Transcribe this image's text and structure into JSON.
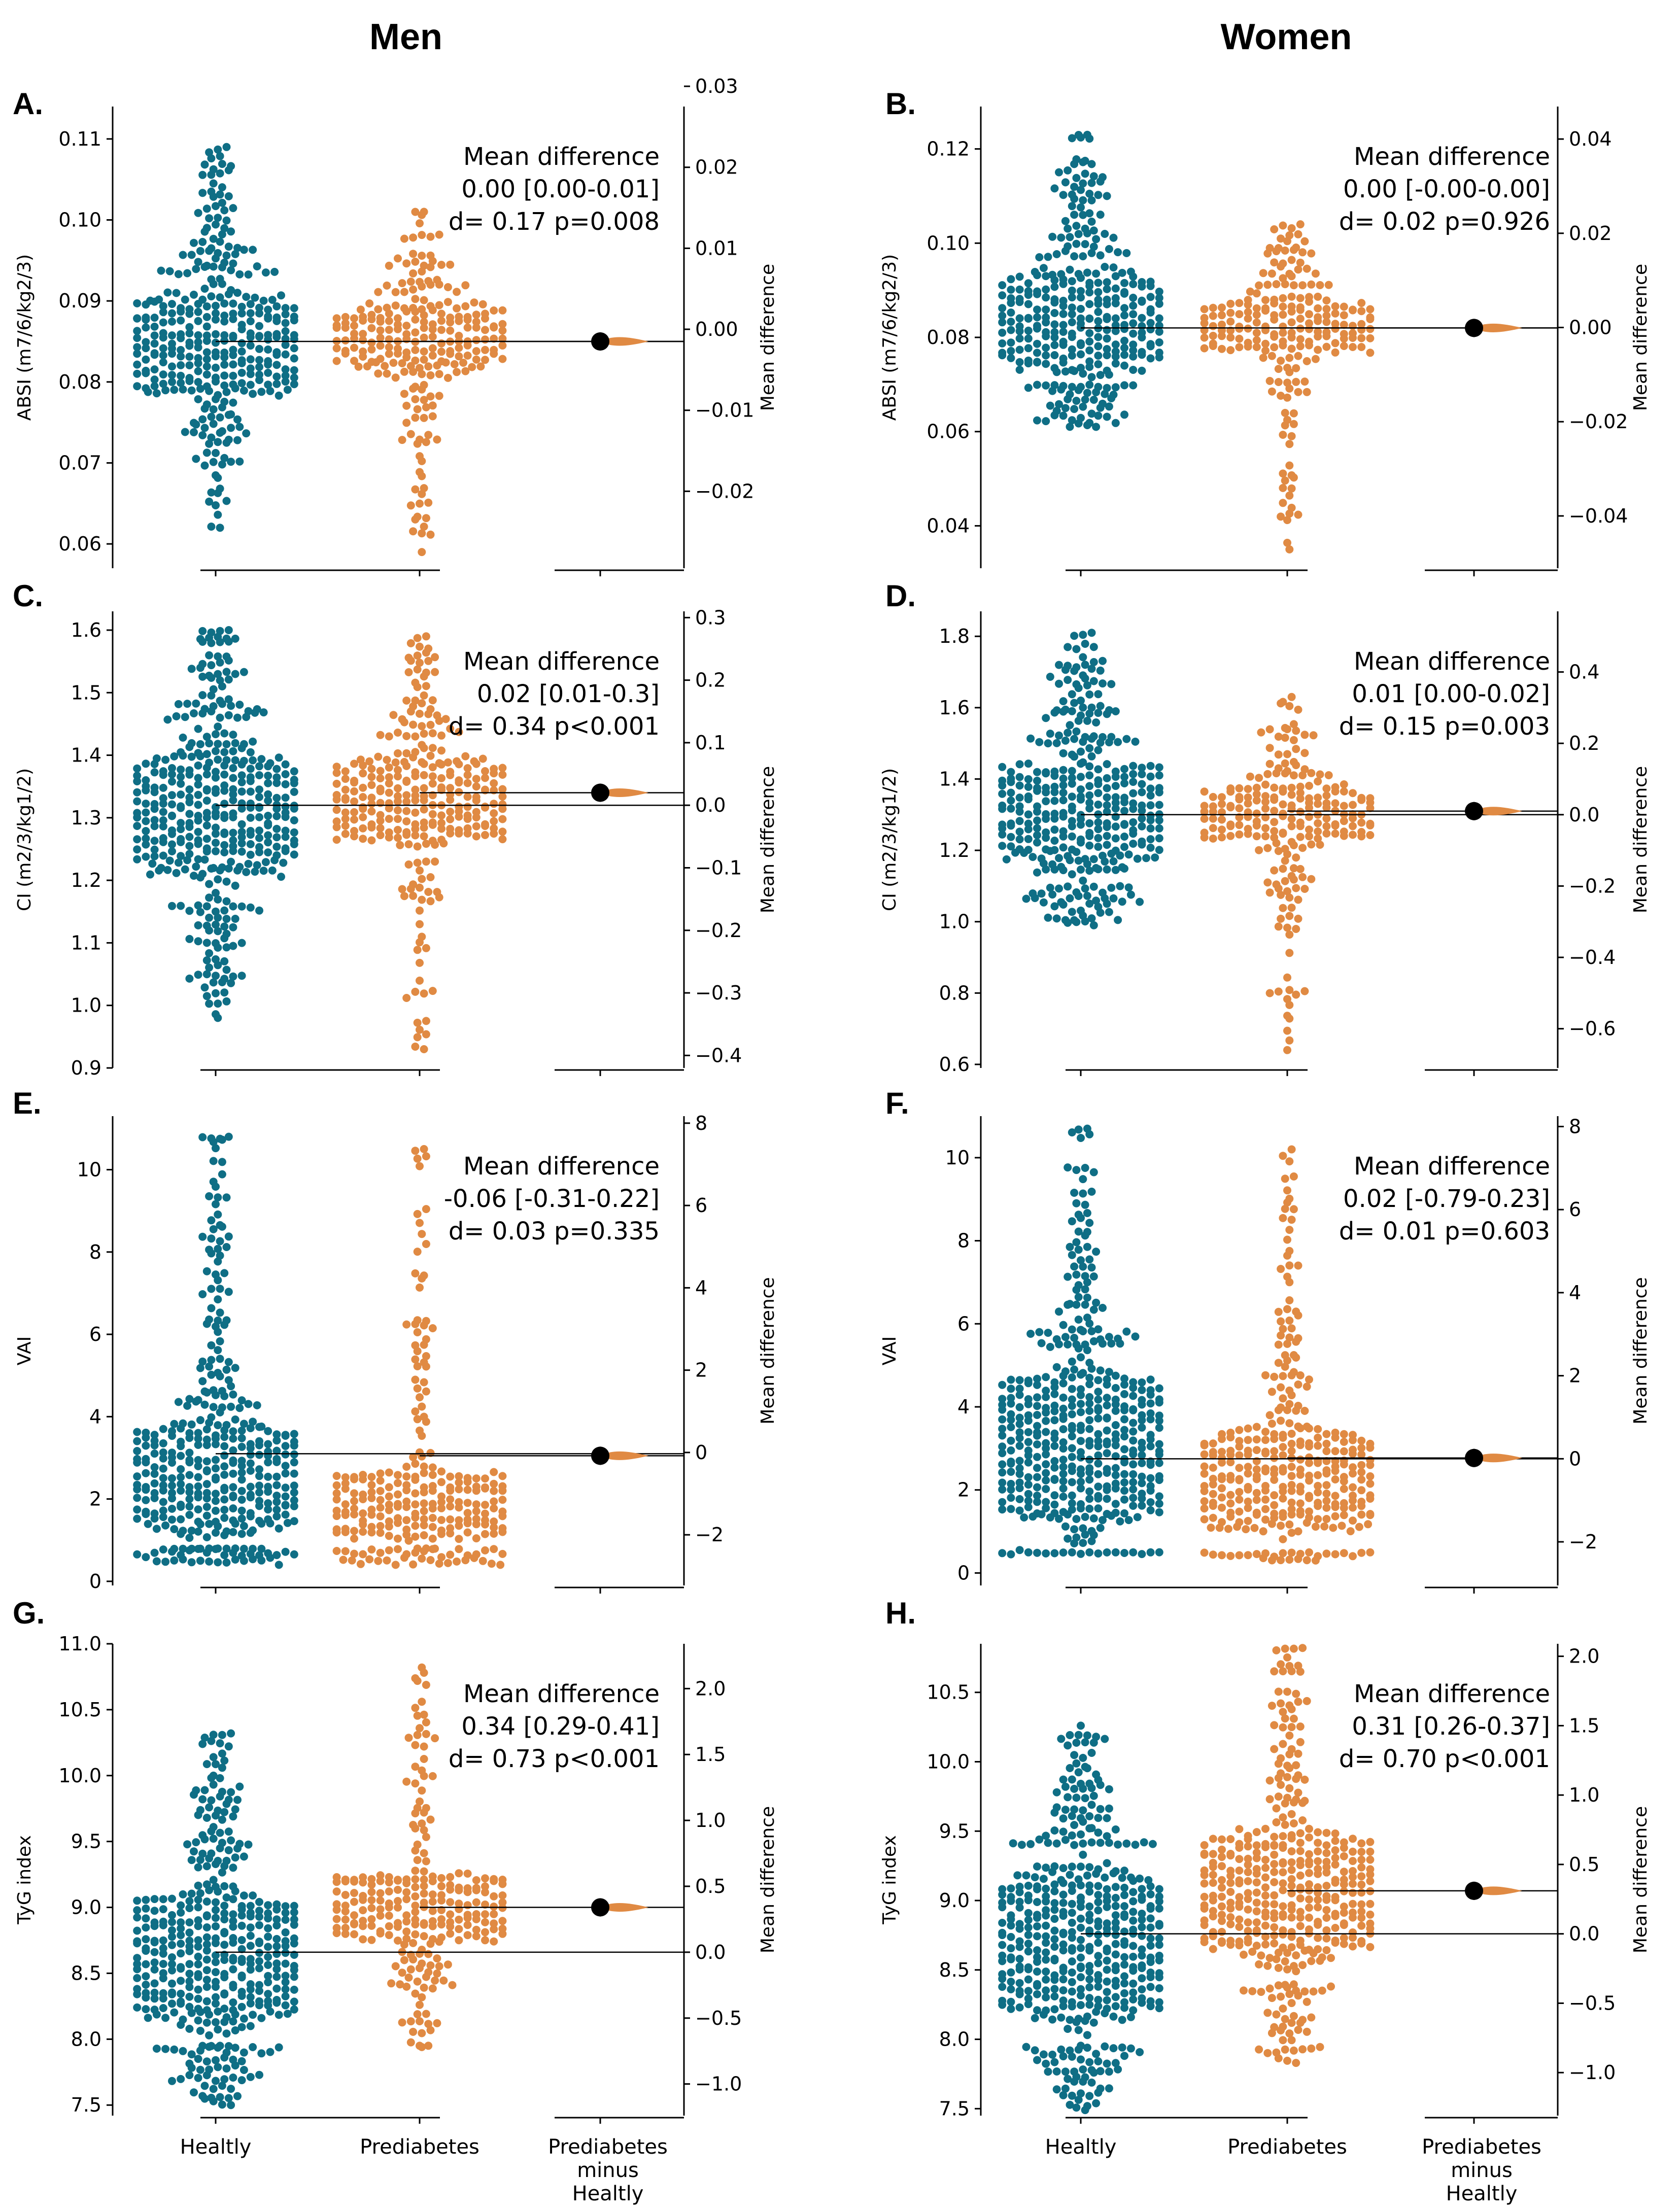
{
  "figure": {
    "column_titles": [
      "Men",
      "Women"
    ],
    "x_categories": [
      "Healtly",
      "Prediabetes",
      "Prediabetes minus Healtly"
    ],
    "difference_axis_label": "Mean difference",
    "colors": {
      "healthy": "#0f6e85",
      "prediabetes": "#e08a43",
      "mean_dot": "#000000"
    }
  },
  "chart_data": [
    {
      "type": "scatter",
      "subtype": "estimation-swarm",
      "panel": "A.",
      "sex": "Men",
      "ylabel": "ABSI (m7/6/kg2/3)",
      "ylim": [
        0.057,
        0.114
      ],
      "yticks": [
        0.06,
        0.07,
        0.08,
        0.09,
        0.1,
        0.11
      ],
      "ytick_labels": [
        "0.06",
        "0.07",
        "0.08",
        "0.09",
        "0.10",
        "0.11"
      ],
      "diff_ylim": [
        -0.0295,
        0.0275
      ],
      "diff_ticks": [
        -0.02,
        -0.01,
        0.0,
        0.01,
        0.02,
        0.03
      ],
      "diff_tick_labels": [
        "−0.02",
        "−0.01",
        "0.00",
        "0.01",
        "0.02",
        "0.03"
      ],
      "healthy": {
        "mean": 0.085,
        "min": 0.062,
        "max": 0.109,
        "body": [
          0.076,
          0.093
        ],
        "n": 620
      },
      "prediabetes": {
        "mean": 0.085,
        "min": 0.059,
        "max": 0.101,
        "body": [
          0.08,
          0.091
        ],
        "n": 440
      },
      "mean_difference": 0.001,
      "annotation": [
        "Mean difference",
        "0.00 [0.00-0.01]",
        "d= 0.17 p=0.008"
      ],
      "show_category_labels": false
    },
    {
      "type": "scatter",
      "subtype": "estimation-swarm",
      "panel": "B.",
      "sex": "Women",
      "ylabel": "ABSI (m7/6/kg2/3)",
      "ylim": [
        0.031,
        0.129
      ],
      "yticks": [
        0.04,
        0.06,
        0.08,
        0.1,
        0.12
      ],
      "ytick_labels": [
        "0.04",
        "0.06",
        "0.08",
        "0.10",
        "0.12"
      ],
      "diff_ylim": [
        -0.0511,
        0.0469
      ],
      "diff_ticks": [
        -0.04,
        -0.02,
        0.0,
        0.02,
        0.04
      ],
      "diff_tick_labels": [
        "−0.04",
        "−0.02",
        "0.00",
        "0.02",
        "0.04"
      ],
      "healthy": {
        "mean": 0.082,
        "min": 0.061,
        "max": 0.123,
        "body": [
          0.07,
          0.097
        ],
        "n": 640
      },
      "prediabetes": {
        "mean": 0.082,
        "min": 0.035,
        "max": 0.104,
        "body": [
          0.074,
          0.091
        ],
        "n": 420
      },
      "mean_difference": 0.0,
      "annotation": [
        "Mean difference",
        "0.00 [-0.00-0.00]",
        "d= 0.02 p=0.926"
      ],
      "show_category_labels": false
    },
    {
      "type": "scatter",
      "subtype": "estimation-swarm",
      "panel": "C.",
      "sex": "Men",
      "ylabel": "CI (m2/3/kg1/2)",
      "ylim": [
        0.9,
        1.63
      ],
      "yticks": [
        0.9,
        1.0,
        1.1,
        1.2,
        1.3,
        1.4,
        1.5,
        1.6
      ],
      "ytick_labels": [
        "0.9",
        "1.0",
        "1.1",
        "1.2",
        "1.3",
        "1.4",
        "1.5",
        "1.6"
      ],
      "diff_ylim": [
        -0.42,
        0.31
      ],
      "diff_ticks": [
        -0.4,
        -0.3,
        -0.2,
        -0.1,
        0.0,
        0.1,
        0.2,
        0.3
      ],
      "diff_tick_labels": [
        "−0.4",
        "−0.3",
        "−0.2",
        "−0.1",
        "0.0",
        "0.1",
        "0.2",
        "0.3"
      ],
      "healthy": {
        "mean": 1.32,
        "min": 0.98,
        "max": 1.6,
        "body": [
          1.16,
          1.46
        ],
        "n": 640
      },
      "prediabetes": {
        "mean": 1.34,
        "min": 0.93,
        "max": 1.59,
        "body": [
          1.23,
          1.43
        ],
        "n": 460
      },
      "mean_difference": 0.02,
      "annotation": [
        "Mean difference",
        "0.02 [0.01-0.3]",
        "d= 0.34 p<0.001"
      ],
      "show_category_labels": false
    },
    {
      "type": "scatter",
      "subtype": "estimation-swarm",
      "panel": "D.",
      "sex": "Women",
      "ylabel": "CI (m2/3/kg1/2)",
      "ylim": [
        0.59,
        1.87
      ],
      "yticks": [
        0.6,
        0.8,
        1.0,
        1.2,
        1.4,
        1.6,
        1.8
      ],
      "ytick_labels": [
        "0.6",
        "0.8",
        "1.0",
        "1.2",
        "1.4",
        "1.6",
        "1.8"
      ],
      "diff_ylim": [
        -0.71,
        0.57
      ],
      "diff_ticks": [
        -0.6,
        -0.4,
        -0.2,
        0.0,
        0.2,
        0.4
      ],
      "diff_tick_labels": [
        "−0.6",
        "−0.4",
        "−0.2",
        "0.0",
        "0.2",
        "0.4"
      ],
      "healthy": {
        "mean": 1.3,
        "min": 0.99,
        "max": 1.81,
        "body": [
          1.1,
          1.5
        ],
        "n": 660
      },
      "prediabetes": {
        "mean": 1.31,
        "min": 0.64,
        "max": 1.63,
        "body": [
          1.19,
          1.41
        ],
        "n": 440
      },
      "mean_difference": 0.01,
      "annotation": [
        "Mean difference",
        "0.01 [0.00-0.02]",
        "d= 0.15 p=0.003"
      ],
      "show_category_labels": false
    },
    {
      "type": "scatter",
      "subtype": "estimation-swarm",
      "panel": "E.",
      "sex": "Men",
      "ylabel": "VAI",
      "ylim": [
        -0.1,
        11.3
      ],
      "yticks": [
        0,
        2,
        4,
        6,
        8,
        10
      ],
      "ytick_labels": [
        "0",
        "2",
        "4",
        "6",
        "8",
        "10"
      ],
      "diff_ylim": [
        -3.23,
        8.17
      ],
      "diff_ticks": [
        -2,
        0,
        2,
        4,
        6,
        8
      ],
      "diff_tick_labels": [
        "−2",
        "0",
        "2",
        "4",
        "6",
        "8"
      ],
      "healthy": {
        "mean": 3.1,
        "min": 0.4,
        "max": 10.8,
        "body": [
          0.8,
          4.2
        ],
        "n": 780
      },
      "prediabetes": {
        "mean": 3.05,
        "min": 0.4,
        "max": 10.5,
        "body": [
          0.8,
          3.0
        ],
        "n": 520
      },
      "mean_difference": -0.06,
      "annotation": [
        "Mean difference",
        "-0.06 [-0.31-0.22]",
        "d= 0.03 p=0.335"
      ],
      "show_category_labels": false
    },
    {
      "type": "scatter",
      "subtype": "estimation-swarm",
      "panel": "F.",
      "sex": "Women",
      "ylabel": "VAI",
      "ylim": [
        -0.3,
        11.0
      ],
      "yticks": [
        0,
        2,
        4,
        6,
        8,
        10
      ],
      "ytick_labels": [
        "0",
        "2",
        "4",
        "6",
        "8",
        "10"
      ],
      "diff_ylim": [
        -3.05,
        8.25
      ],
      "diff_ticks": [
        -2,
        0,
        2,
        4,
        6,
        8
      ],
      "diff_tick_labels": [
        "−2",
        "0",
        "2",
        "4",
        "6",
        "8"
      ],
      "healthy": {
        "mean": 2.75,
        "min": 0.45,
        "max": 10.7,
        "body": [
          0.5,
          5.5
        ],
        "n": 820
      },
      "prediabetes": {
        "mean": 2.77,
        "min": 0.3,
        "max": 10.2,
        "body": [
          0.5,
          3.9
        ],
        "n": 560
      },
      "mean_difference": 0.02,
      "annotation": [
        "Mean difference",
        "0.02 [-0.79-0.23]",
        "d= 0.01 p=0.603"
      ],
      "show_category_labels": false
    },
    {
      "type": "scatter",
      "subtype": "estimation-swarm",
      "panel": "G.",
      "sex": "Men",
      "ylabel": "TyG index",
      "ylim": [
        7.42,
        11.0
      ],
      "yticks": [
        7.5,
        8.0,
        8.5,
        9.0,
        9.5,
        10.0,
        10.5,
        11.0
      ],
      "ytick_labels": [
        "7.5",
        "8.0",
        "8.5",
        "9.0",
        "9.5",
        "10.0",
        "10.5",
        "11.0"
      ],
      "diff_ylim": [
        -1.24,
        2.34
      ],
      "diff_ticks": [
        -1.0,
        -0.5,
        0.0,
        0.5,
        1.0,
        1.5,
        2.0
      ],
      "diff_tick_labels": [
        "−1.0",
        "−0.5",
        "0.0",
        "0.5",
        "1.0",
        "1.5",
        "2.0"
      ],
      "healthy": {
        "mean": 8.66,
        "min": 7.5,
        "max": 10.32,
        "body": [
          7.95,
          9.3
        ],
        "n": 700
      },
      "prediabetes": {
        "mean": 9.0,
        "min": 7.94,
        "max": 10.82,
        "body": [
          8.65,
          9.35
        ],
        "n": 460
      },
      "mean_difference": 0.34,
      "annotation": [
        "Mean difference",
        "0.34 [0.29-0.41]",
        "d= 0.73 p<0.001"
      ],
      "show_category_labels": true
    },
    {
      "type": "scatter",
      "subtype": "estimation-swarm",
      "panel": "H.",
      "sex": "Women",
      "ylabel": "TyG index",
      "ylim": [
        7.45,
        10.85
      ],
      "yticks": [
        7.5,
        8.0,
        8.5,
        9.0,
        9.5,
        10.0,
        10.5
      ],
      "ytick_labels": [
        "7.5",
        "8.0",
        "8.5",
        "9.0",
        "9.5",
        "10.0",
        "10.5"
      ],
      "diff_ylim": [
        -1.31,
        2.09
      ],
      "diff_ticks": [
        -1.0,
        -0.5,
        0.0,
        0.5,
        1.0,
        1.5,
        2.0
      ],
      "diff_tick_labels": [
        "−1.0",
        "−0.5",
        "0.0",
        "0.5",
        "1.0",
        "1.5",
        "2.0"
      ],
      "healthy": {
        "mean": 8.76,
        "min": 7.49,
        "max": 10.26,
        "body": [
          7.95,
          9.4
        ],
        "n": 720
      },
      "prediabetes": {
        "mean": 9.07,
        "min": 7.83,
        "max": 10.82,
        "body": [
          8.4,
          9.7
        ],
        "n": 580
      },
      "mean_difference": 0.31,
      "annotation": [
        "Mean difference",
        "0.31 [0.26-0.37]",
        "d= 0.70 p<0.001"
      ],
      "show_category_labels": true
    }
  ]
}
